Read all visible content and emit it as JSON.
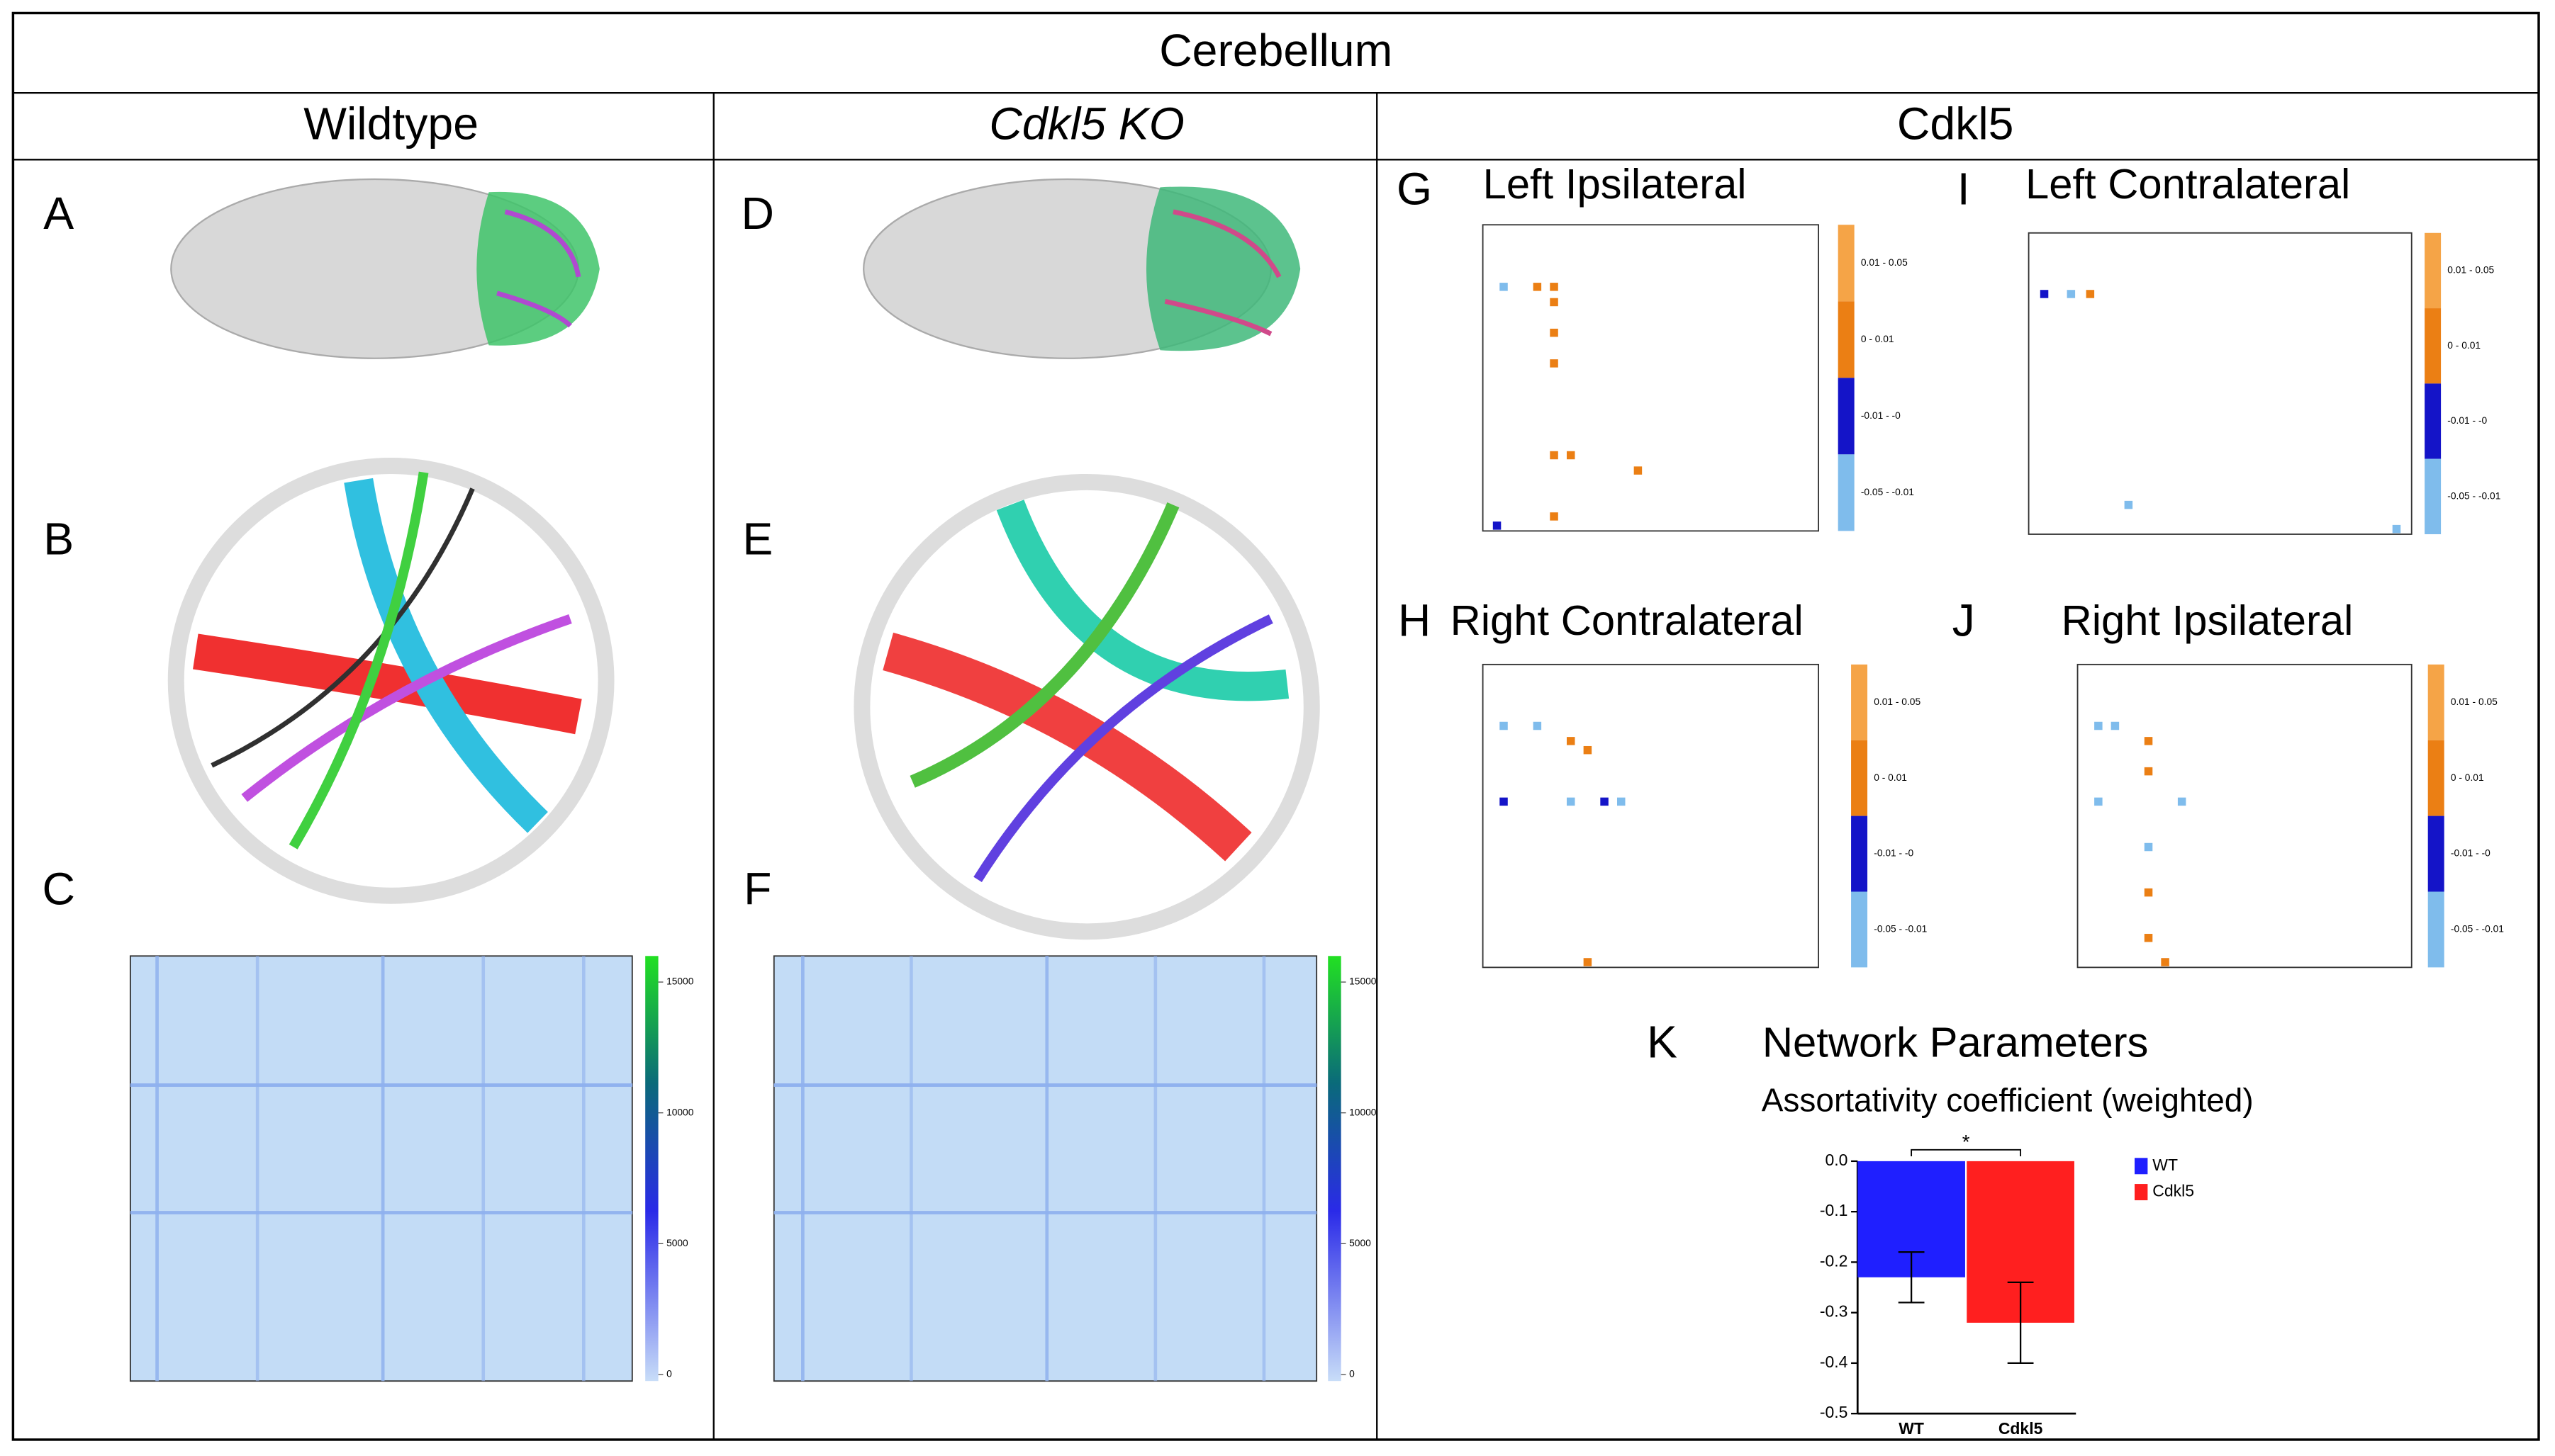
{
  "title": "Cerebellum",
  "columns": [
    "Wildtype",
    "Cdkl5 KO",
    "Cdkl5"
  ],
  "panels": [
    "A",
    "B",
    "C",
    "D",
    "E",
    "F"
  ],
  "heatmap_colorbar_ticks": [
    0,
    5000,
    10000,
    15000
  ],
  "matrices": [
    {
      "label": "G",
      "title": "Left Ipsilateral"
    },
    {
      "label": "I",
      "title": "Left Contralateral"
    },
    {
      "label": "H",
      "title": "Right Contralateral"
    },
    {
      "label": "J",
      "title": "Right Ipsilateral"
    }
  ],
  "matrix_legend": [
    "0.01 - 0.05",
    "0 - 0.01",
    "-0.01 - -0",
    "-0.05 - -0.01"
  ],
  "chart_data": {
    "type": "bar",
    "label": "K",
    "title": "Network Parameters",
    "subtitle": "Assortativity coefficient (weighted)",
    "categories": [
      "WT",
      "Cdkl5"
    ],
    "values": [
      -0.23,
      -0.32
    ],
    "errors": [
      0.05,
      0.08
    ],
    "colors": [
      "#1f1fff",
      "#ff1f1f"
    ],
    "ylim": [
      -0.5,
      0
    ],
    "yticks": [
      {
        "value": 0,
        "label": "0.0"
      },
      {
        "value": -0.1,
        "label": "-0.1"
      },
      {
        "value": -0.2,
        "label": "-0.2"
      },
      {
        "value": -0.3,
        "label": "-0.3"
      },
      {
        "value": -0.4,
        "label": "-0.4"
      },
      {
        "value": -0.5,
        "label": "-0.5"
      }
    ],
    "annotation": "*",
    "legend": "upper right"
  }
}
